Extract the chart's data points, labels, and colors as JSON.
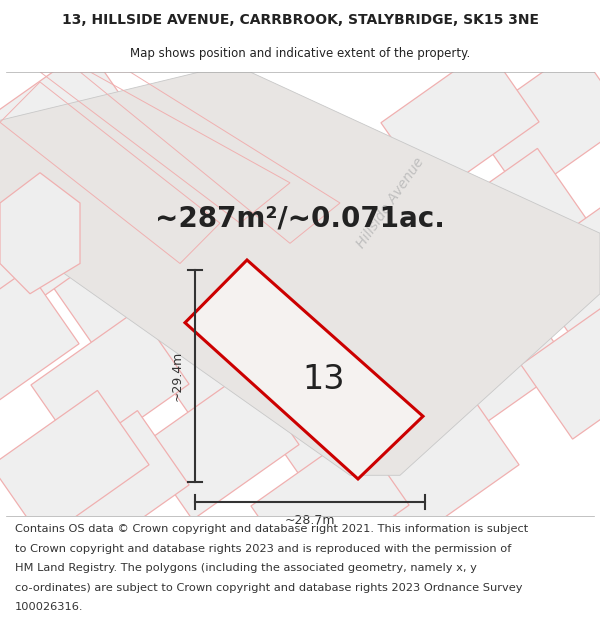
{
  "title_line1": "13, HILLSIDE AVENUE, CARRBROOK, STALYBRIDGE, SK15 3NE",
  "title_line2": "Map shows position and indicative extent of the property.",
  "area_text": "~287m²/~0.071ac.",
  "label_13": "13",
  "dim_height": "~29.4m",
  "dim_width": "~28.7m",
  "road_label": "Hillside Avenue",
  "footer_lines": [
    "Contains OS data © Crown copyright and database right 2021. This information is subject",
    "to Crown copyright and database rights 2023 and is reproduced with the permission of",
    "HM Land Registry. The polygons (including the associated geometry, namely x, y",
    "co-ordinates) are subject to Crown copyright and database rights 2023 Ordnance Survey",
    "100026316."
  ],
  "map_bg": "#ffffff",
  "parcel_fill": "#efefef",
  "parcel_edge_pink": "#f0b0b0",
  "parcel_edge_grey": "#c8c8c8",
  "road_fill": "#e0dede",
  "property_fill": "#f5f2f0",
  "property_edge": "#cc0000",
  "dim_color": "#333333",
  "text_color": "#222222",
  "road_label_color": "#bbbbbb",
  "footer_fontsize": 8.2,
  "title_fontsize": 10,
  "subtitle_fontsize": 8.5,
  "area_fontsize": 20,
  "label_fontsize": 24
}
